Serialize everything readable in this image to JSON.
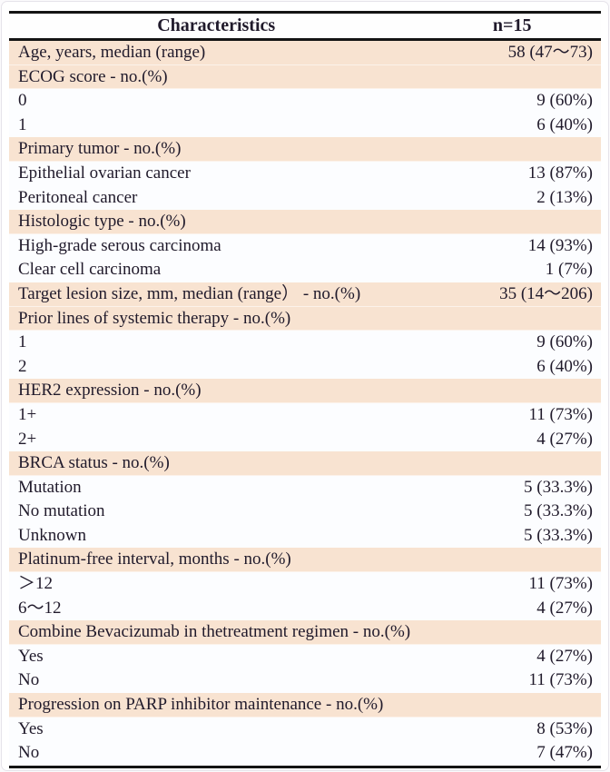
{
  "table": {
    "header": {
      "characteristics": "Characteristics",
      "n": "n=15"
    },
    "rows": [
      {
        "label": "Age, years, median (range)",
        "value": "58 (47～73)",
        "shaded": true
      },
      {
        "label": "ECOG score - no.(%)",
        "value": "",
        "shaded": true
      },
      {
        "label": "0",
        "value": "9 (60%)",
        "shaded": false
      },
      {
        "label": "1",
        "value": "6 (40%)",
        "shaded": false
      },
      {
        "label": "Primary tumor  - no.(%)",
        "value": "",
        "shaded": true
      },
      {
        "label": "Epithelial ovarian cancer",
        "value": "13 (87%)",
        "shaded": false
      },
      {
        "label": "Peritoneal cancer",
        "value": "2 (13%)",
        "shaded": false
      },
      {
        "label": "Histologic type - no.(%)",
        "value": "",
        "shaded": true
      },
      {
        "label": "High-grade serous carcinoma",
        "value": "14 (93%)",
        "shaded": false
      },
      {
        "label": "Clear cell carcinoma",
        "value": "1 (7%)",
        "shaded": false
      },
      {
        "label": "Target lesion size, mm, median (range） - no.(%)",
        "value": "35 (14～206)",
        "shaded": true
      },
      {
        "label": "Prior lines of systemic therapy - no.(%)",
        "value": "",
        "shaded": true
      },
      {
        "label": "1",
        "value": "9 (60%)",
        "shaded": false
      },
      {
        "label": "2",
        "value": "6 (40%)",
        "shaded": false
      },
      {
        "label": "HER2 expression - no.(%)",
        "value": "",
        "shaded": true
      },
      {
        "label": "1+",
        "value": "11 (73%)",
        "shaded": false
      },
      {
        "label": "2+",
        "value": "4 (27%)",
        "shaded": false
      },
      {
        "label": "BRCA status - no.(%)",
        "value": "",
        "shaded": true
      },
      {
        "label": "Mutation",
        "value": "5 (33.3%)",
        "shaded": false
      },
      {
        "label": "No mutation",
        "value": "5 (33.3%)",
        "shaded": false
      },
      {
        "label": "Unknown",
        "value": "5 (33.3%)",
        "shaded": false
      },
      {
        "label": "Platinum-free interval, months - no.(%)",
        "value": "",
        "shaded": true
      },
      {
        "label": "＞12",
        "value": "11 (73%)",
        "shaded": false
      },
      {
        "label": "6～12",
        "value": "4 (27%)",
        "shaded": false
      },
      {
        "label": "Combine Bevacizumab in thetreatment regimen - no.(%)",
        "value": "",
        "shaded": true
      },
      {
        "label": "Yes",
        "value": "4 (27%)",
        "shaded": false
      },
      {
        "label": "No",
        "value": "11 (73%)",
        "shaded": false
      },
      {
        "label": "Progression on PARP inhibitor maintenance - no.(%)",
        "value": "",
        "shaded": true
      },
      {
        "label": "Yes",
        "value": "8 (53%)",
        "shaded": false
      },
      {
        "label": "No",
        "value": "7 (47%)",
        "shaded": false
      }
    ],
    "colors": {
      "shaded_row": "#f8e3d1",
      "plain_row": "#fcfdff",
      "rule": "#141414",
      "text": "#201a2b"
    }
  }
}
